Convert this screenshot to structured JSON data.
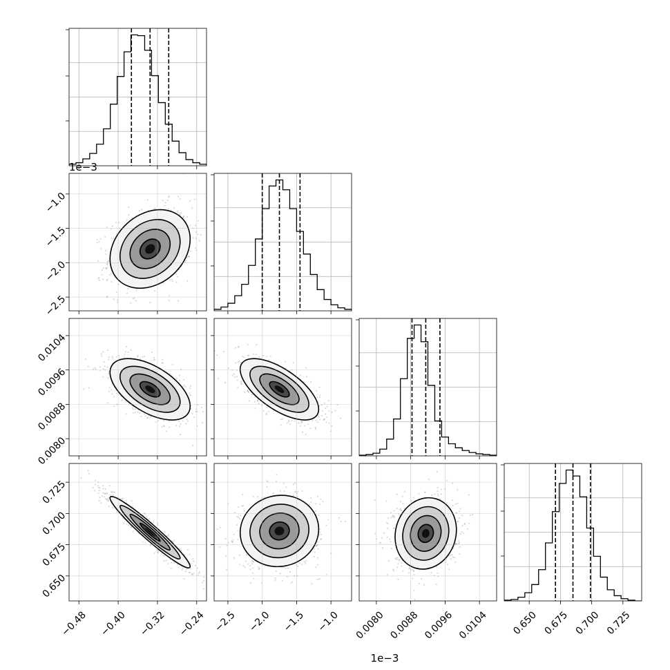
{
  "chart_data": {
    "type": "corner",
    "n_params": 4,
    "grid": true,
    "params": [
      {
        "range": [
          -0.5,
          -0.22
        ],
        "x_ticks": [
          -0.48,
          -0.4,
          -0.32,
          -0.24
        ],
        "x_tick_labels": [
          "−0.48",
          "−0.40",
          "−0.32",
          "−0.24"
        ],
        "quantiles": [
          -0.373,
          -0.335,
          -0.297
        ],
        "hist_counts": [
          2,
          4,
          9,
          16,
          28,
          48,
          80,
          116,
          148,
          170,
          169,
          150,
          117,
          82,
          54,
          32,
          17,
          8,
          4,
          2
        ],
        "hist_max": 170
      },
      {
        "range": [
          -2.7,
          -0.7
        ],
        "x_ticks": [
          -2.5,
          -2.0,
          -1.5,
          -1.0
        ],
        "x_tick_labels": [
          "−2.5",
          "−2.0",
          "−1.5",
          "−1.0"
        ],
        "y_ticks": [
          -1.0,
          -1.5,
          -2.0,
          -2.5
        ],
        "y_tick_labels": [
          "−1.0",
          "−1.5",
          "−2.0",
          "−2.5"
        ],
        "offset_label": "1e−3",
        "quantiles": [
          -2.0,
          -1.75,
          -1.45
        ],
        "hist_counts": [
          2,
          5,
          10,
          20,
          35,
          60,
          95,
          135,
          165,
          173,
          160,
          135,
          105,
          75,
          48,
          28,
          15,
          8,
          4,
          2
        ],
        "hist_max": 173
      },
      {
        "range": [
          0.0076,
          0.0108
        ],
        "x_ticks": [
          0.008,
          0.0088,
          0.0096,
          0.0104
        ],
        "x_tick_labels": [
          "0.0080",
          "0.0088",
          "0.0096",
          "0.0104"
        ],
        "y_ticks": [
          0.0104,
          0.0096,
          0.0088,
          0.008
        ],
        "y_tick_labels": [
          "0.0104",
          "0.0096",
          "0.0088",
          "0.0080"
        ],
        "quantiles": [
          0.00883,
          0.00915,
          0.00948
        ],
        "hist_counts": [
          1,
          2,
          4,
          10,
          25,
          55,
          115,
          175,
          195,
          170,
          105,
          52,
          28,
          18,
          12,
          8,
          5,
          3,
          2,
          1
        ],
        "hist_max": 195
      },
      {
        "range": [
          0.63,
          0.74
        ],
        "x_ticks": [
          0.65,
          0.675,
          0.7,
          0.725
        ],
        "x_tick_labels": [
          "0.650",
          "0.675",
          "0.700",
          "0.725"
        ],
        "y_ticks": [
          0.725,
          0.7,
          0.675,
          0.65
        ],
        "y_tick_labels": [
          "0.725",
          "0.700",
          "0.675",
          "0.650"
        ],
        "quantiles": [
          0.671,
          0.685,
          0.699
        ],
        "hist_counts": [
          1,
          2,
          5,
          11,
          22,
          42,
          78,
          120,
          158,
          176,
          168,
          140,
          98,
          60,
          32,
          15,
          7,
          3,
          1,
          0
        ],
        "hist_max": 176
      }
    ],
    "offset_labels": [
      {
        "text": "1e−3",
        "axis": "y",
        "row": 1
      },
      {
        "text": "1e−3",
        "axis": "x",
        "col": 1
      }
    ],
    "correlations": [
      {
        "row": 1,
        "col": 0,
        "cx": -0.335,
        "cy": -1.8,
        "sx": 0.04,
        "sy": 0.28,
        "rho": 0.25
      },
      {
        "row": 2,
        "col": 0,
        "cx": -0.335,
        "cy": 0.00915,
        "sx": 0.04,
        "sy": 0.00035,
        "rho": -0.55
      },
      {
        "row": 2,
        "col": 1,
        "cx": -1.75,
        "cy": 0.00915,
        "sx": 0.28,
        "sy": 0.00035,
        "rho": -0.65
      },
      {
        "row": 3,
        "col": 0,
        "cx": -0.335,
        "cy": 0.685,
        "sx": 0.04,
        "sy": 0.014,
        "rho": -0.96
      },
      {
        "row": 3,
        "col": 1,
        "cx": -1.75,
        "cy": 0.686,
        "sx": 0.28,
        "sy": 0.014,
        "rho": 0.05
      },
      {
        "row": 3,
        "col": 2,
        "cx": 0.00915,
        "cy": 0.684,
        "sx": 0.00035,
        "sy": 0.014,
        "rho": 0.1
      }
    ],
    "contour_levels": [
      0.5,
      1.0,
      1.5,
      2.0
    ],
    "scatter_points_per_panel": 900
  }
}
